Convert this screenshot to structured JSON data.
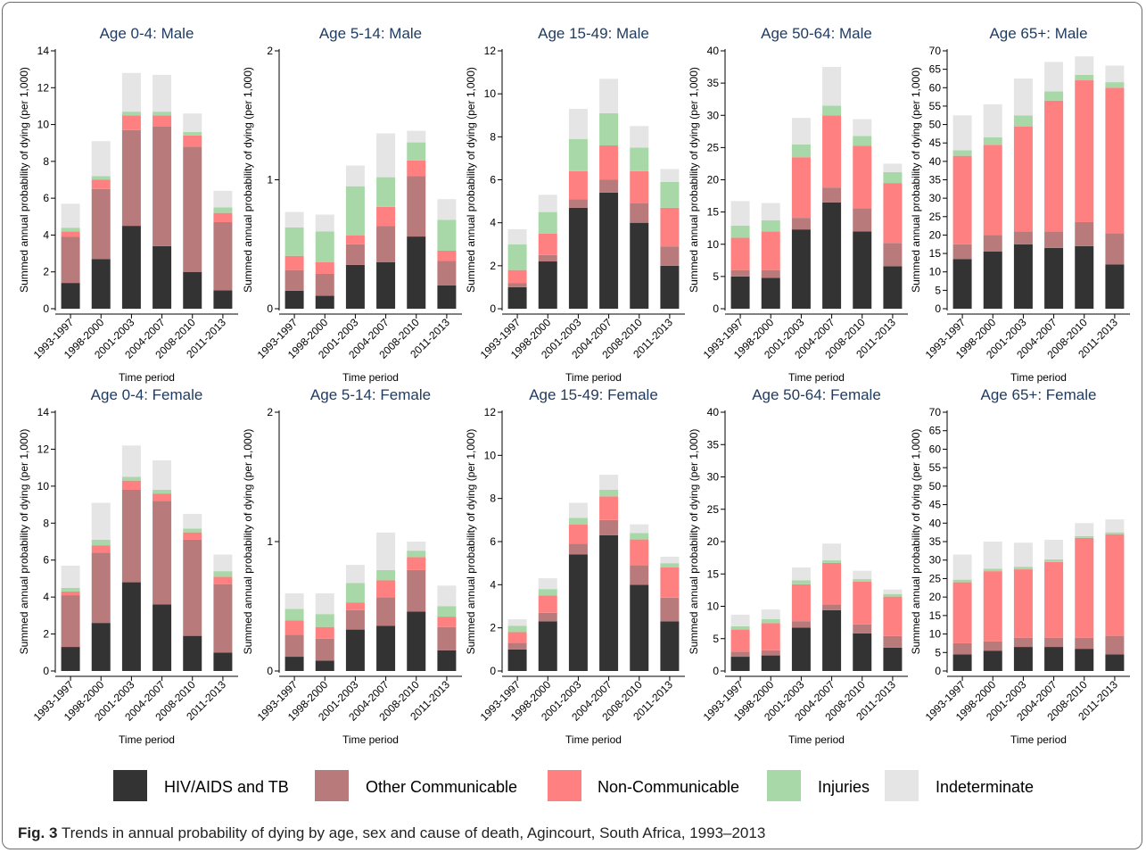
{
  "figure": {
    "caption_label": "Fig. 3",
    "caption_text": "Trends in annual probability of dying by age, sex and cause of death, Agincourt, South Africa, 1993–2013"
  },
  "colors": {
    "HIV/AIDS and TB": "#333333",
    "Other Communicable": "#b97a7c",
    "Non-Communicable": "#ff8080",
    "Injuries": "#a8d8a8",
    "Indeterminate": "#e5e5e5"
  },
  "legend": [
    "HIV/AIDS and TB",
    "Other Communicable",
    "Non-Communicable",
    "Injuries",
    "Indeterminate"
  ],
  "chart_data": [
    {
      "type": "bar",
      "stacked": true,
      "title": "Age 0-4: Male",
      "xlabel": "Time period",
      "ylabel": "Summed annual probability of dying (per 1,000)",
      "categories": [
        "1993-1997",
        "1998-2000",
        "2001-2003",
        "2004-2007",
        "2008-2010",
        "2011-2013"
      ],
      "ylim": [
        0,
        14
      ],
      "yticks": [
        0,
        2,
        4,
        6,
        8,
        10,
        12,
        14
      ],
      "series": [
        {
          "name": "HIV/AIDS and TB",
          "values": [
            1.4,
            2.7,
            4.5,
            3.4,
            2.0,
            1.0
          ]
        },
        {
          "name": "Other Communicable",
          "values": [
            2.5,
            3.8,
            5.2,
            6.5,
            6.8,
            3.7
          ]
        },
        {
          "name": "Non-Communicable",
          "values": [
            0.3,
            0.5,
            0.8,
            0.6,
            0.6,
            0.5
          ]
        },
        {
          "name": "Injuries",
          "values": [
            0.2,
            0.2,
            0.2,
            0.2,
            0.2,
            0.3
          ]
        },
        {
          "name": "Indeterminate",
          "values": [
            1.3,
            1.9,
            2.1,
            2.0,
            1.0,
            0.9
          ]
        }
      ]
    },
    {
      "type": "bar",
      "stacked": true,
      "title": "Age 5-14: Male",
      "xlabel": "Time period",
      "ylabel": "Summed annual probability of dying (per 1,000)",
      "categories": [
        "1993-1997",
        "1998-2000",
        "2001-2003",
        "2004-2007",
        "2008-2010",
        "2011-2013"
      ],
      "ylim": [
        0,
        2
      ],
      "yticks": [
        0,
        1,
        2
      ],
      "series": [
        {
          "name": "HIV/AIDS and TB",
          "values": [
            0.14,
            0.1,
            0.34,
            0.36,
            0.56,
            0.18
          ]
        },
        {
          "name": "Other Communicable",
          "values": [
            0.16,
            0.17,
            0.16,
            0.28,
            0.47,
            0.19
          ]
        },
        {
          "name": "Non-Communicable",
          "values": [
            0.11,
            0.09,
            0.07,
            0.15,
            0.12,
            0.08
          ]
        },
        {
          "name": "Injuries",
          "values": [
            0.22,
            0.24,
            0.38,
            0.23,
            0.14,
            0.24
          ]
        },
        {
          "name": "Indeterminate",
          "values": [
            0.12,
            0.13,
            0.16,
            0.34,
            0.09,
            0.16
          ]
        }
      ]
    },
    {
      "type": "bar",
      "stacked": true,
      "title": "Age 15-49: Male",
      "xlabel": "Time period",
      "ylabel": "Summed annual probability of dying (per 1,000)",
      "categories": [
        "1993-1997",
        "1998-2000",
        "2001-2003",
        "2004-2007",
        "2008-2010",
        "2011-2013"
      ],
      "ylim": [
        0,
        12
      ],
      "yticks": [
        0,
        2,
        4,
        6,
        8,
        10,
        12
      ],
      "series": [
        {
          "name": "HIV/AIDS and TB",
          "values": [
            1.0,
            2.2,
            4.7,
            5.4,
            4.0,
            2.0
          ]
        },
        {
          "name": "Other Communicable",
          "values": [
            0.2,
            0.3,
            0.4,
            0.6,
            0.9,
            0.9
          ]
        },
        {
          "name": "Non-Communicable",
          "values": [
            0.6,
            1.0,
            1.3,
            1.6,
            1.5,
            1.8
          ]
        },
        {
          "name": "Injuries",
          "values": [
            1.2,
            1.0,
            1.5,
            1.5,
            1.1,
            1.2
          ]
        },
        {
          "name": "Indeterminate",
          "values": [
            0.7,
            0.8,
            1.4,
            1.6,
            1.0,
            0.6
          ]
        }
      ]
    },
    {
      "type": "bar",
      "stacked": true,
      "title": "Age 50-64: Male",
      "xlabel": "Time period",
      "ylabel": "Summed annual probability of dying (per 1,000)",
      "categories": [
        "1993-1997",
        "1998-2000",
        "2001-2003",
        "2004-2007",
        "2008-2010",
        "2011-2013"
      ],
      "ylim": [
        0,
        40
      ],
      "yticks": [
        0,
        5,
        10,
        15,
        20,
        25,
        30,
        35,
        40
      ],
      "series": [
        {
          "name": "HIV/AIDS and TB",
          "values": [
            5.0,
            4.8,
            12.3,
            16.5,
            12.0,
            6.6
          ]
        },
        {
          "name": "Other Communicable",
          "values": [
            1.0,
            1.2,
            1.8,
            2.3,
            3.6,
            3.6
          ]
        },
        {
          "name": "Non-Communicable",
          "values": [
            5.0,
            6.0,
            9.4,
            11.2,
            9.7,
            9.3
          ]
        },
        {
          "name": "Injuries",
          "values": [
            1.9,
            1.7,
            2.0,
            1.5,
            1.5,
            1.7
          ]
        },
        {
          "name": "Indeterminate",
          "values": [
            3.8,
            2.7,
            4.1,
            6.0,
            2.6,
            1.3
          ]
        }
      ]
    },
    {
      "type": "bar",
      "stacked": true,
      "title": "Age 65+: Male",
      "xlabel": "Time period",
      "ylabel": "Summed annual probability of dying (per 1,000)",
      "categories": [
        "1993-1997",
        "1998-2000",
        "2001-2003",
        "2004-2007",
        "2008-2010",
        "2011-2013"
      ],
      "ylim": [
        0,
        70
      ],
      "yticks": [
        0,
        5,
        10,
        15,
        20,
        25,
        30,
        35,
        40,
        45,
        50,
        55,
        60,
        65,
        70
      ],
      "series": [
        {
          "name": "HIV/AIDS and TB",
          "values": [
            13.5,
            15.5,
            17.5,
            16.5,
            17.0,
            12.0
          ]
        },
        {
          "name": "Other Communicable",
          "values": [
            4.0,
            4.5,
            3.5,
            4.5,
            6.5,
            8.5
          ]
        },
        {
          "name": "Non-Communicable",
          "values": [
            24.0,
            24.5,
            28.5,
            35.5,
            38.5,
            39.5
          ]
        },
        {
          "name": "Injuries",
          "values": [
            1.5,
            2.0,
            3.0,
            2.5,
            1.5,
            1.5
          ]
        },
        {
          "name": "Indeterminate",
          "values": [
            9.5,
            9.0,
            10.0,
            8.0,
            5.0,
            4.5
          ]
        }
      ]
    },
    {
      "type": "bar",
      "stacked": true,
      "title": "Age 0-4: Female",
      "xlabel": "Time period",
      "ylabel": "Summed annual probability of dying (per 1,000)",
      "categories": [
        "1993-1997",
        "1998-2000",
        "2001-2003",
        "2004-2007",
        "2008-2010",
        "2011-2013"
      ],
      "ylim": [
        0,
        14
      ],
      "yticks": [
        0,
        2,
        4,
        6,
        8,
        10,
        12,
        14
      ],
      "series": [
        {
          "name": "HIV/AIDS and TB",
          "values": [
            1.3,
            2.6,
            4.8,
            3.6,
            1.9,
            1.0
          ]
        },
        {
          "name": "Other Communicable",
          "values": [
            2.8,
            3.8,
            5.0,
            5.6,
            5.2,
            3.7
          ]
        },
        {
          "name": "Non-Communicable",
          "values": [
            0.2,
            0.4,
            0.5,
            0.4,
            0.4,
            0.4
          ]
        },
        {
          "name": "Injuries",
          "values": [
            0.2,
            0.3,
            0.2,
            0.2,
            0.2,
            0.3
          ]
        },
        {
          "name": "Indeterminate",
          "values": [
            1.2,
            2.0,
            1.7,
            1.6,
            0.8,
            0.9
          ]
        }
      ]
    },
    {
      "type": "bar",
      "stacked": true,
      "title": "Age 5-14: Female",
      "xlabel": "Time period",
      "ylabel": "Summed annual probability of dying (per 1,000)",
      "categories": [
        "1993-1997",
        "1998-2000",
        "2001-2003",
        "2004-2007",
        "2008-2010",
        "2011-2013"
      ],
      "ylim": [
        0,
        2
      ],
      "yticks": [
        0,
        1,
        2
      ],
      "series": [
        {
          "name": "HIV/AIDS and TB",
          "values": [
            0.11,
            0.08,
            0.32,
            0.35,
            0.46,
            0.16
          ]
        },
        {
          "name": "Other Communicable",
          "values": [
            0.17,
            0.17,
            0.15,
            0.22,
            0.32,
            0.18
          ]
        },
        {
          "name": "Non-Communicable",
          "values": [
            0.11,
            0.09,
            0.06,
            0.13,
            0.1,
            0.08
          ]
        },
        {
          "name": "Injuries",
          "values": [
            0.09,
            0.1,
            0.15,
            0.08,
            0.05,
            0.08
          ]
        },
        {
          "name": "Indeterminate",
          "values": [
            0.12,
            0.16,
            0.14,
            0.29,
            0.07,
            0.16
          ]
        }
      ]
    },
    {
      "type": "bar",
      "stacked": true,
      "title": "Age 15-49: Female",
      "xlabel": "Time period",
      "ylabel": "Summed annual probability of dying (per 1,000)",
      "categories": [
        "1993-1997",
        "1998-2000",
        "2001-2003",
        "2004-2007",
        "2008-2010",
        "2011-2013"
      ],
      "ylim": [
        0,
        12
      ],
      "yticks": [
        0,
        2,
        4,
        6,
        8,
        10,
        12
      ],
      "series": [
        {
          "name": "HIV/AIDS and TB",
          "values": [
            1.0,
            2.3,
            5.4,
            6.3,
            4.0,
            2.3
          ]
        },
        {
          "name": "Other Communicable",
          "values": [
            0.3,
            0.4,
            0.5,
            0.7,
            0.9,
            1.1
          ]
        },
        {
          "name": "Non-Communicable",
          "values": [
            0.5,
            0.8,
            0.9,
            1.1,
            1.2,
            1.4
          ]
        },
        {
          "name": "Injuries",
          "values": [
            0.3,
            0.3,
            0.3,
            0.3,
            0.3,
            0.2
          ]
        },
        {
          "name": "Indeterminate",
          "values": [
            0.3,
            0.5,
            0.7,
            0.7,
            0.4,
            0.3
          ]
        }
      ]
    },
    {
      "type": "bar",
      "stacked": true,
      "title": "Age 50-64: Female",
      "xlabel": "Time period",
      "ylabel": "Summed annual probability of dying (per 1,000)",
      "categories": [
        "1993-1997",
        "1998-2000",
        "2001-2003",
        "2004-2007",
        "2008-2010",
        "2011-2013"
      ],
      "ylim": [
        0,
        40
      ],
      "yticks": [
        0,
        5,
        10,
        15,
        20,
        25,
        30,
        35,
        40
      ],
      "series": [
        {
          "name": "HIV/AIDS and TB",
          "values": [
            2.2,
            2.4,
            6.7,
            9.4,
            5.8,
            3.6
          ]
        },
        {
          "name": "Other Communicable",
          "values": [
            0.8,
            0.8,
            1.0,
            0.9,
            1.4,
            1.8
          ]
        },
        {
          "name": "Non-Communicable",
          "values": [
            3.4,
            4.2,
            5.7,
            6.4,
            6.6,
            6.1
          ]
        },
        {
          "name": "Injuries",
          "values": [
            0.5,
            0.6,
            0.6,
            0.4,
            0.4,
            0.4
          ]
        },
        {
          "name": "Indeterminate",
          "values": [
            1.8,
            1.5,
            2.0,
            2.6,
            1.3,
            0.7
          ]
        }
      ]
    },
    {
      "type": "bar",
      "stacked": true,
      "title": "Age 65+: Female",
      "xlabel": "Time period",
      "ylabel": "Summed annual probability of dying (per 1,000)",
      "categories": [
        "1993-1997",
        "1998-2000",
        "2001-2003",
        "2004-2007",
        "2008-2010",
        "2011-2013"
      ],
      "ylim": [
        0,
        70
      ],
      "yticks": [
        0,
        5,
        10,
        15,
        20,
        25,
        30,
        35,
        40,
        45,
        50,
        55,
        60,
        65,
        70
      ],
      "series": [
        {
          "name": "HIV/AIDS and TB",
          "values": [
            4.5,
            5.5,
            6.5,
            6.5,
            6.0,
            4.5
          ]
        },
        {
          "name": "Other Communicable",
          "values": [
            3.0,
            2.5,
            2.5,
            2.5,
            3.0,
            5.0
          ]
        },
        {
          "name": "Non-Communicable",
          "values": [
            16.5,
            19.0,
            18.5,
            20.5,
            27.0,
            27.5
          ]
        },
        {
          "name": "Injuries",
          "values": [
            0.7,
            0.7,
            0.7,
            0.7,
            0.5,
            0.5
          ]
        },
        {
          "name": "Indeterminate",
          "values": [
            6.8,
            7.3,
            6.5,
            5.3,
            3.5,
            3.5
          ]
        }
      ]
    }
  ]
}
